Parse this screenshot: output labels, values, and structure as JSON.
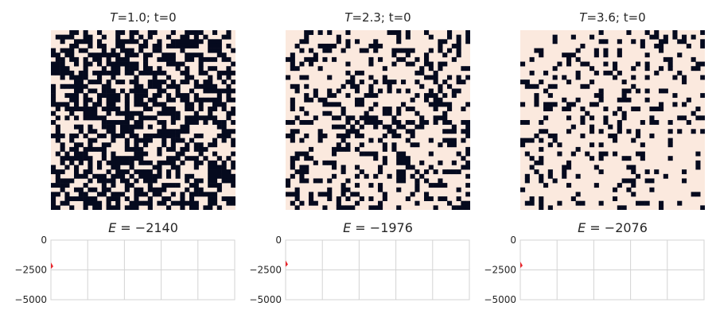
{
  "chart_data": [
    {
      "type": "heatmap",
      "title": {
        "var": "T",
        "rest": "=1.0; t=0"
      },
      "grid_size": 40,
      "up_fraction": 0.47,
      "seed": 11,
      "colors": {
        "up": "#fbe9de",
        "down": "#050a1e"
      }
    },
    {
      "type": "heatmap",
      "title": {
        "var": "T",
        "rest": "=2.3; t=0"
      },
      "grid_size": 40,
      "up_fraction": 0.7,
      "seed": 23,
      "colors": {
        "up": "#fbe9de",
        "down": "#050a1e"
      }
    },
    {
      "type": "heatmap",
      "title": {
        "var": "T",
        "rest": "=3.6; t=0"
      },
      "grid_size": 40,
      "up_fraction": 0.8,
      "seed": 37,
      "colors": {
        "up": "#fbe9de",
        "down": "#050a1e"
      }
    },
    {
      "type": "line",
      "title": {
        "var": "E",
        "rest": " = −2140"
      },
      "x": [
        0
      ],
      "y": [
        -2140
      ],
      "ylim": [
        -5000,
        0
      ],
      "yticks": [
        0,
        -2500,
        -5000
      ],
      "ytick_labels": [
        "0",
        "−2500",
        "−5000"
      ],
      "grid": true,
      "colors": {
        "line": "#e8262c",
        "grid": "#d3d3d3"
      }
    },
    {
      "type": "line",
      "title": {
        "var": "E",
        "rest": " = −1976"
      },
      "x": [
        0
      ],
      "y": [
        -1976
      ],
      "ylim": [
        -5000,
        0
      ],
      "yticks": [
        0,
        -2500,
        -5000
      ],
      "ytick_labels": [
        "0",
        "−2500",
        "−5000"
      ],
      "grid": true,
      "colors": {
        "line": "#e8262c",
        "grid": "#d3d3d3"
      }
    },
    {
      "type": "line",
      "title": {
        "var": "E",
        "rest": " = −2076"
      },
      "x": [
        0
      ],
      "y": [
        -2076
      ],
      "ylim": [
        -5000,
        0
      ],
      "yticks": [
        0,
        -2500,
        -5000
      ],
      "ytick_labels": [
        "0",
        "−2500",
        "−5000"
      ],
      "grid": true,
      "colors": {
        "line": "#e8262c",
        "grid": "#d3d3d3"
      }
    }
  ]
}
